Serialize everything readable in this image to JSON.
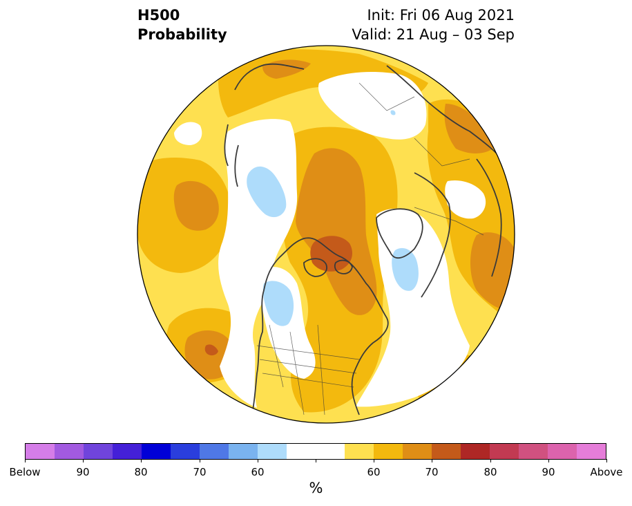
{
  "header": {
    "title_line1": "H500",
    "title_line2": "Probability",
    "init_text": "Init: Fri 06 Aug 2021",
    "valid_text": "Valid: 21 Aug – 03 Sep"
  },
  "colorbar": {
    "colors": [
      "#d57de8",
      "#a25ae0",
      "#7044dc",
      "#4420d8",
      "#0000d7",
      "#2a3edd",
      "#4f78e6",
      "#7ab3ef",
      "#aedcfb",
      "#ffffff",
      "#ffffff",
      "#fee050",
      "#f3b90e",
      "#df8e16",
      "#c45a1a",
      "#ae2725",
      "#c23a52",
      "#d05180",
      "#dc63ad",
      "#e57dd9"
    ],
    "labels": [
      "Below",
      "90",
      "80",
      "70",
      "60",
      "60",
      "70",
      "80",
      "90",
      "Above"
    ],
    "units": "%"
  },
  "map": {
    "projection": "north-polar-stereographic",
    "colors": {
      "background": "#fee050",
      "p60": "#f3b90e",
      "p65": "#df8e16",
      "p70": "#c45a1a",
      "below60": "#aedcfb",
      "neutral": "#ffffff",
      "coast": "#3a3a3a"
    }
  }
}
